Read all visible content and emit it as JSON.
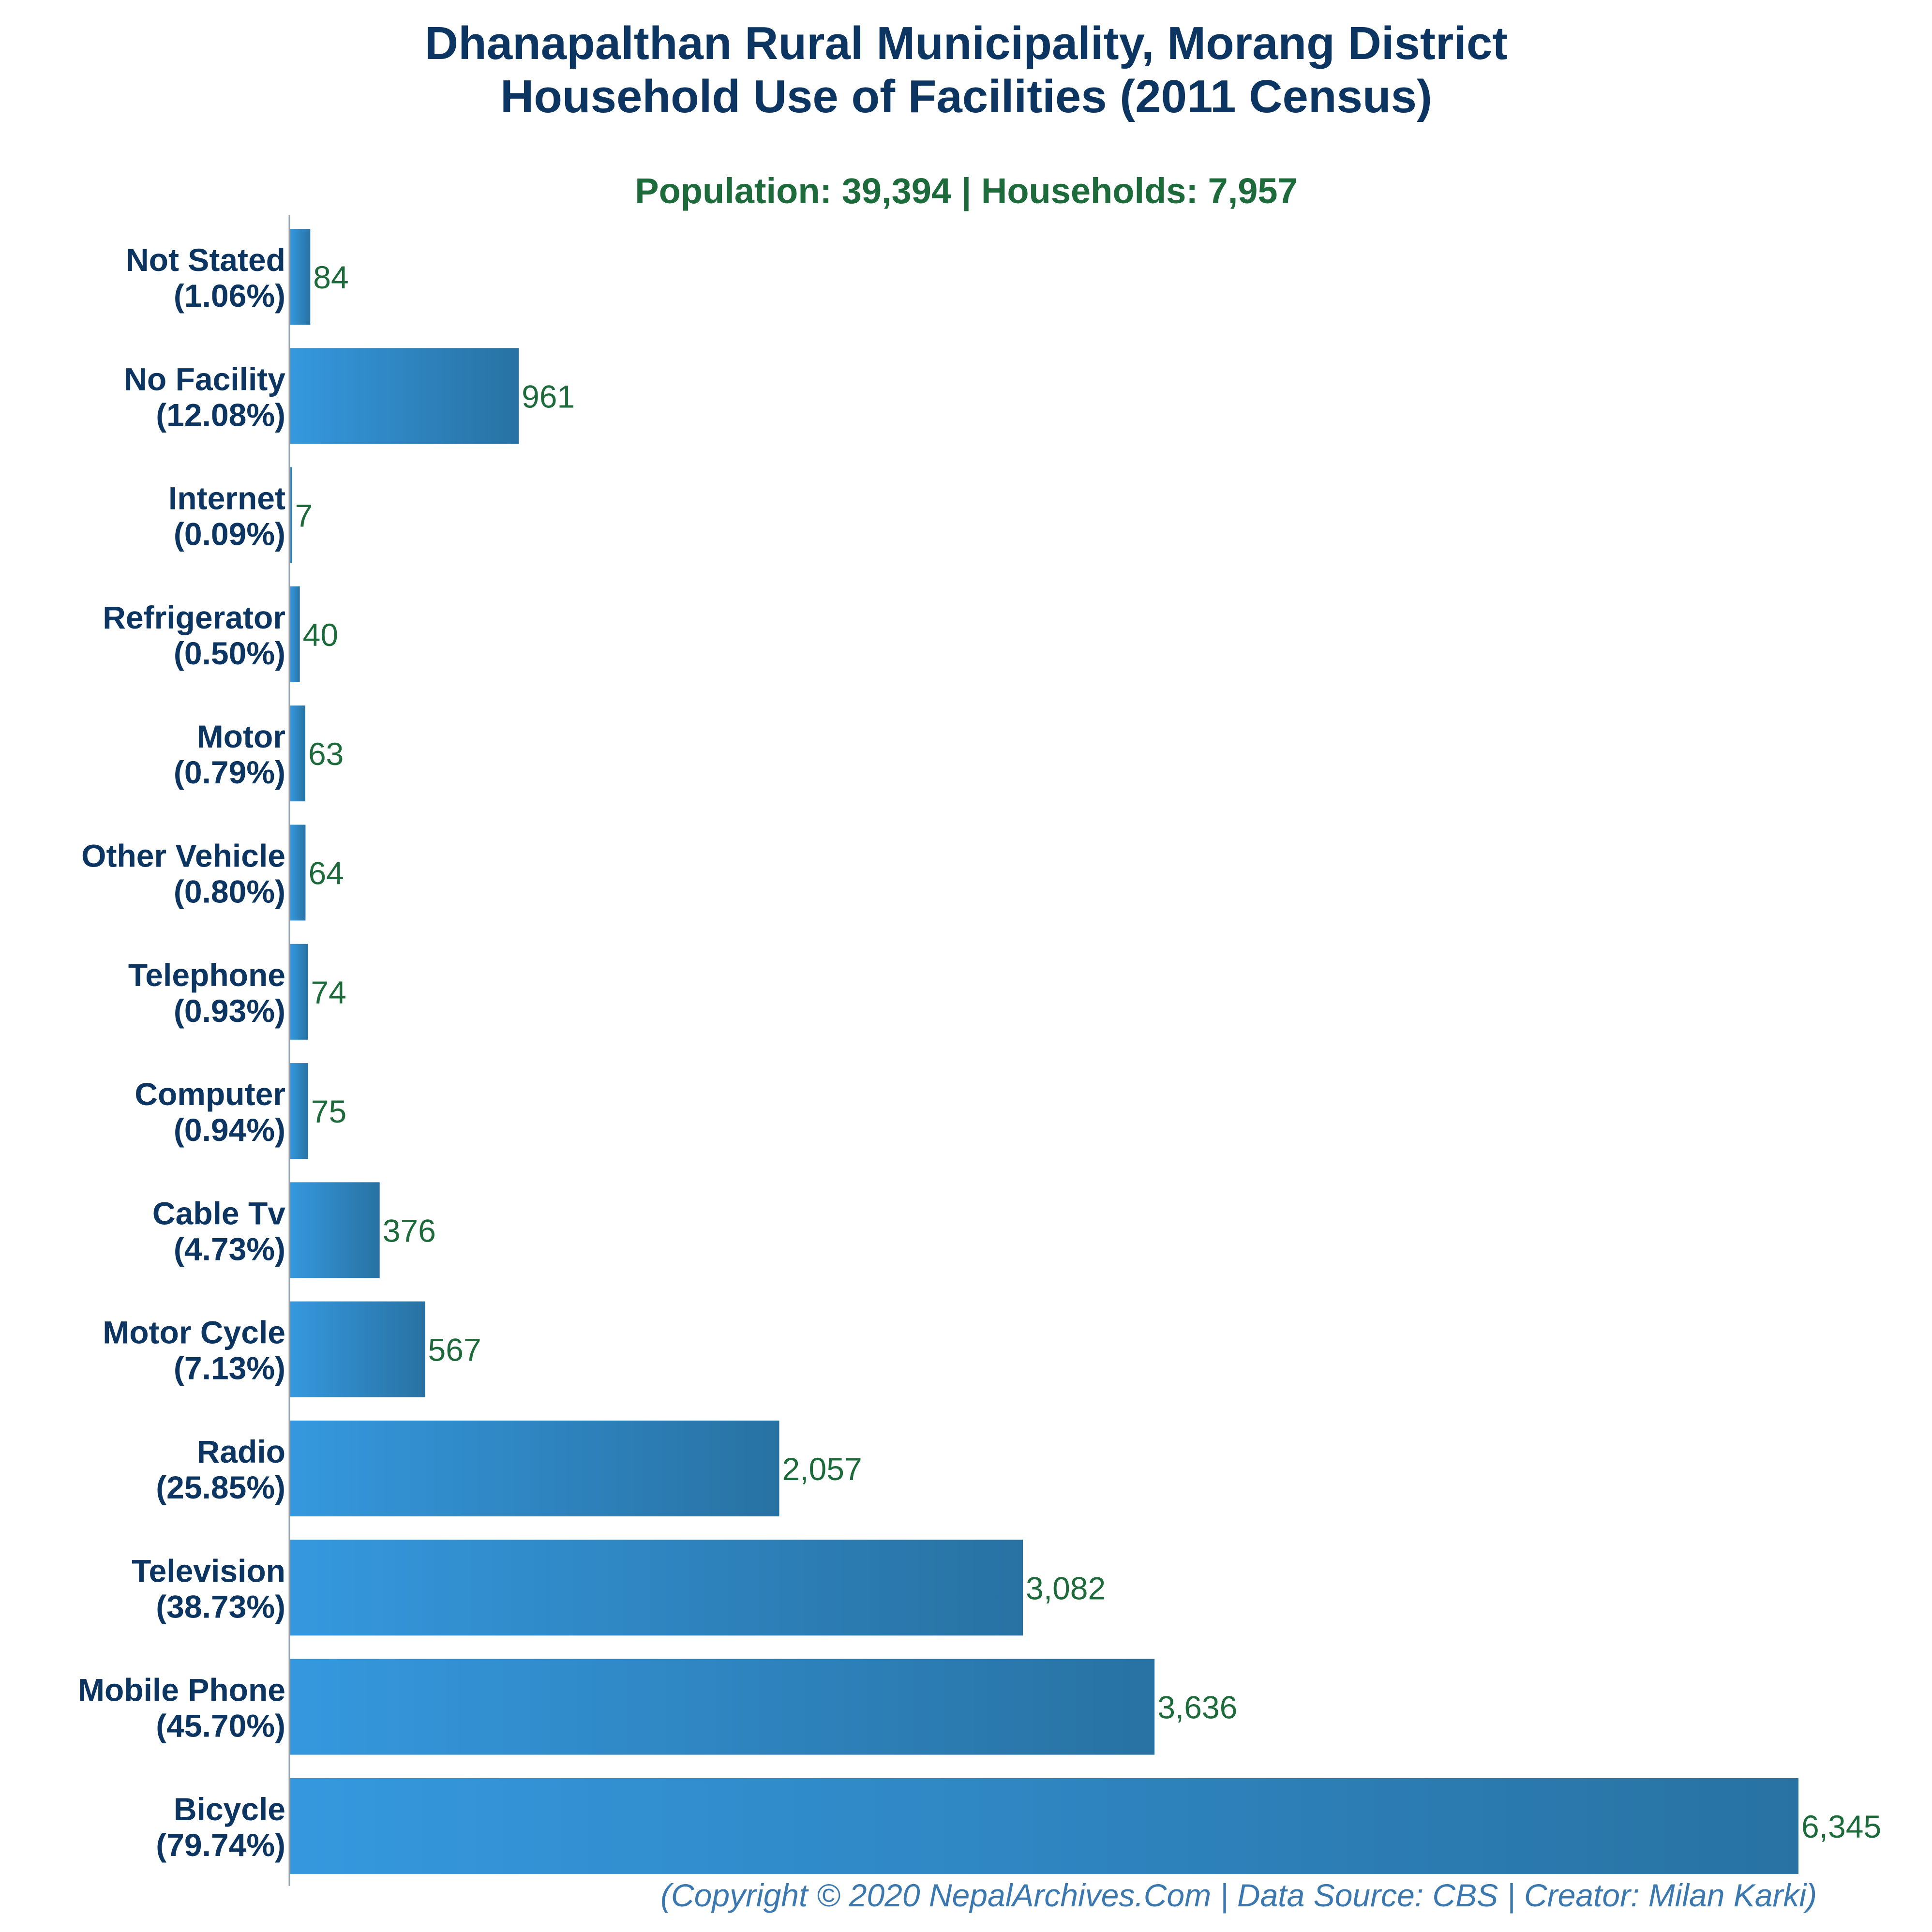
{
  "chart_data": {
    "type": "bar",
    "orientation": "horizontal",
    "title": [
      "Dhanapalthan Rural Municipality, Morang District",
      "Household Use of Facilities (2011 Census)"
    ],
    "subtitle": "Population: 39,394 | Households: 7,957",
    "categories": [
      "Not Stated",
      "No Facility",
      "Internet",
      "Refrigerator",
      "Motor",
      "Other Vehicle",
      "Telephone",
      "Computer",
      "Cable Tv",
      "Motor Cycle",
      "Radio",
      "Television",
      "Mobile Phone",
      "Bicycle"
    ],
    "percent_labels": [
      "(1.06%)",
      "(12.08%)",
      "(0.09%)",
      "(0.50%)",
      "(0.79%)",
      "(0.80%)",
      "(0.93%)",
      "(0.94%)",
      "(4.73%)",
      "(7.13%)",
      "(25.85%)",
      "(38.73%)",
      "(45.70%)",
      "(79.74%)"
    ],
    "values": [
      84,
      961,
      7,
      40,
      63,
      64,
      74,
      75,
      376,
      567,
      2057,
      3082,
      3636,
      6345
    ],
    "value_labels": [
      "84",
      "961",
      "7",
      "40",
      "63",
      "64",
      "74",
      "75",
      "376",
      "567",
      "2,057",
      "3,082",
      "3,636",
      "6,345"
    ],
    "xlim": [
      0,
      6345
    ],
    "xlabel": "",
    "ylabel": "",
    "grid": false,
    "colors": {
      "bar_start": "#3598de",
      "bar_end": "#2872a3",
      "title": "#0d3562",
      "subtitle": "#1d6b3a",
      "value": "#1d6b3a",
      "footer": "#3b78b0"
    }
  },
  "footer": "(Copyright © 2020 NepalArchives.Com | Data Source: CBS | Creator: Milan Karki)"
}
